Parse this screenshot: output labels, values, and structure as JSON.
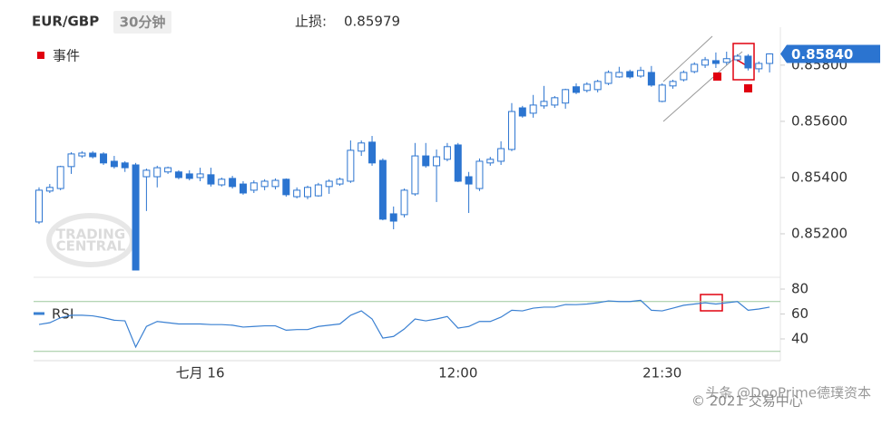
{
  "header": {
    "symbol": "EUR/GBP",
    "timeframe": "30分钟",
    "stop_loss_label": "止损:",
    "stop_loss": "0.85979"
  },
  "chart_data": [
    {
      "type": "candlestick",
      "x": [
        null,
        null,
        null,
        null,
        null,
        null,
        null,
        null,
        null,
        null,
        null,
        null,
        null,
        null,
        null,
        "七月 16",
        null,
        null,
        null,
        null,
        null,
        null,
        null,
        null,
        null,
        null,
        null,
        null,
        null,
        null,
        null,
        null,
        null,
        null,
        null,
        null,
        null,
        null,
        null,
        "12:00",
        null,
        null,
        null,
        null,
        null,
        null,
        null,
        null,
        null,
        null,
        null,
        null,
        null,
        null,
        null,
        null,
        null,
        null,
        "21:30",
        null,
        null,
        null,
        null,
        null,
        null,
        null,
        null,
        null,
        null
      ],
      "open": [
        0.85242,
        0.85352,
        0.85361,
        0.85439,
        0.85477,
        0.85487,
        0.85484,
        0.85458,
        0.85452,
        0.85445,
        0.85403,
        0.85403,
        0.8542,
        0.8542,
        0.85413,
        0.854,
        0.8541,
        0.85374,
        0.85397,
        0.85377,
        0.85355,
        0.85368,
        0.85368,
        0.85394,
        0.85332,
        0.85332,
        0.85335,
        0.85368,
        0.85377,
        0.85387,
        0.85494,
        0.85526,
        0.85461,
        0.85271,
        0.85268,
        0.85342,
        0.85477,
        0.85442,
        0.85465,
        0.85516,
        0.85403,
        0.85361,
        0.85452,
        0.85458,
        0.855,
        0.85648,
        0.85629,
        0.85655,
        0.85658,
        0.85665,
        0.85723,
        0.8571,
        0.85713,
        0.85735,
        0.85758,
        0.85777,
        0.85761,
        0.85774,
        0.85671,
        0.85726,
        0.85748,
        0.85777,
        0.858,
        0.85816,
        0.8581,
        0.85819,
        0.85832,
        0.85787,
        0.85806
      ],
      "high": [
        0.85365,
        0.85377,
        0.85442,
        0.8549,
        0.85494,
        0.85494,
        0.8549,
        0.85477,
        0.85458,
        0.85452,
        0.85432,
        0.85442,
        0.85439,
        0.85426,
        0.85426,
        0.85435,
        0.85435,
        0.854,
        0.85406,
        0.85387,
        0.8539,
        0.85394,
        0.85397,
        0.85397,
        0.85365,
        0.85371,
        0.85381,
        0.85394,
        0.854,
        0.85532,
        0.85532,
        0.85548,
        0.85468,
        0.85297,
        0.85361,
        0.85523,
        0.85523,
        0.855,
        0.85523,
        0.85523,
        0.8542,
        0.85468,
        0.85474,
        0.85529,
        0.85665,
        0.85655,
        0.85694,
        0.85726,
        0.8569,
        0.85716,
        0.85735,
        0.85739,
        0.85748,
        0.85781,
        0.85794,
        0.85784,
        0.85794,
        0.85797,
        0.85735,
        0.85748,
        0.85781,
        0.8581,
        0.85829,
        0.85845,
        0.85848,
        0.85839,
        0.85839,
        0.85813,
        0.85842
      ],
      "low": [
        0.85235,
        0.85345,
        0.85355,
        0.85413,
        0.8547,
        0.85468,
        0.85445,
        0.85432,
        0.8542,
        0.85071,
        0.85281,
        0.85365,
        0.85413,
        0.85394,
        0.8539,
        0.85387,
        0.85368,
        0.85368,
        0.85361,
        0.85339,
        0.85345,
        0.85355,
        0.85358,
        0.85332,
        0.85326,
        0.85323,
        0.85332,
        0.85342,
        0.85371,
        0.85381,
        0.85477,
        0.85442,
        0.85248,
        0.85216,
        0.85258,
        0.85335,
        0.85435,
        0.85313,
        0.85458,
        0.85384,
        0.85274,
        0.85352,
        0.85442,
        0.85445,
        0.85494,
        0.85613,
        0.85613,
        0.85645,
        0.85648,
        0.85645,
        0.85697,
        0.85703,
        0.85703,
        0.85729,
        0.85755,
        0.85752,
        0.85755,
        0.85723,
        0.85668,
        0.85716,
        0.85742,
        0.85771,
        0.8579,
        0.8579,
        0.858,
        0.85813,
        0.85781,
        0.85774,
        0.85774
      ],
      "close": [
        0.85355,
        0.85365,
        0.85439,
        0.85484,
        0.85487,
        0.85474,
        0.85452,
        0.85439,
        0.85435,
        0.85071,
        0.85426,
        0.85435,
        0.85435,
        0.854,
        0.85397,
        0.85413,
        0.85377,
        0.85394,
        0.85368,
        0.85345,
        0.85381,
        0.85387,
        0.8539,
        0.85339,
        0.85355,
        0.85365,
        0.85374,
        0.85387,
        0.85394,
        0.85497,
        0.85523,
        0.85452,
        0.85252,
        0.85245,
        0.85355,
        0.85477,
        0.85442,
        0.85474,
        0.8551,
        0.85387,
        0.85377,
        0.85458,
        0.85465,
        0.85503,
        0.85635,
        0.85619,
        0.85658,
        0.85671,
        0.85684,
        0.85713,
        0.85703,
        0.85732,
        0.85742,
        0.85774,
        0.85774,
        0.85758,
        0.85781,
        0.85729,
        0.85729,
        0.85742,
        0.85774,
        0.85803,
        0.85819,
        0.85806,
        0.85823,
        0.85832,
        0.8579,
        0.85806,
        0.8584
      ],
      "color": "#2b74d0",
      "up_fill": "#ffffff",
      "ylim": [
        0.8505,
        0.85935
      ],
      "yticks": [
        {
          "value": 0.858,
          "label": "0.85800"
        },
        {
          "value": 0.856,
          "label": "0.85600"
        },
        {
          "value": 0.854,
          "label": "0.85400"
        },
        {
          "value": 0.852,
          "label": "0.85200"
        }
      ],
      "last_price": {
        "value": 0.8584,
        "label": "0.85840"
      },
      "legend": {
        "label": "事件",
        "color": "#e0000f"
      }
    },
    {
      "type": "line",
      "series": [
        {
          "name": "RSI",
          "color": "#3a80d2",
          "values": [
            51.6,
            53,
            57,
            59,
            59,
            58.5,
            57,
            55,
            54.5,
            33.5,
            50,
            54,
            53,
            52,
            52,
            52,
            51.5,
            51.5,
            51,
            49.5,
            50,
            50.5,
            50.5,
            47,
            47.5,
            47.5,
            50,
            51,
            52,
            59,
            62.5,
            56,
            40.7,
            42,
            48,
            56,
            54.5,
            56,
            58,
            48.7,
            50,
            54,
            54,
            57.5,
            63,
            62.5,
            64.7,
            65.5,
            65.5,
            67.6,
            67.5,
            68,
            69,
            70.5,
            70,
            70,
            71,
            63,
            62.5,
            64.7,
            67,
            68,
            69,
            68,
            69,
            70,
            63,
            64,
            65.5
          ]
        }
      ],
      "ylim": [
        22,
        87
      ],
      "yticks": [
        80,
        60,
        40
      ],
      "levels": [
        70,
        30
      ],
      "level_color": "#9cc79c"
    }
  ],
  "watermark": {
    "logo_top": "TRADING",
    "logo_bottom": "CENTRAL",
    "copyright": "© 2021 交易中心",
    "source": "头条 @DooPrime德璞资本"
  }
}
